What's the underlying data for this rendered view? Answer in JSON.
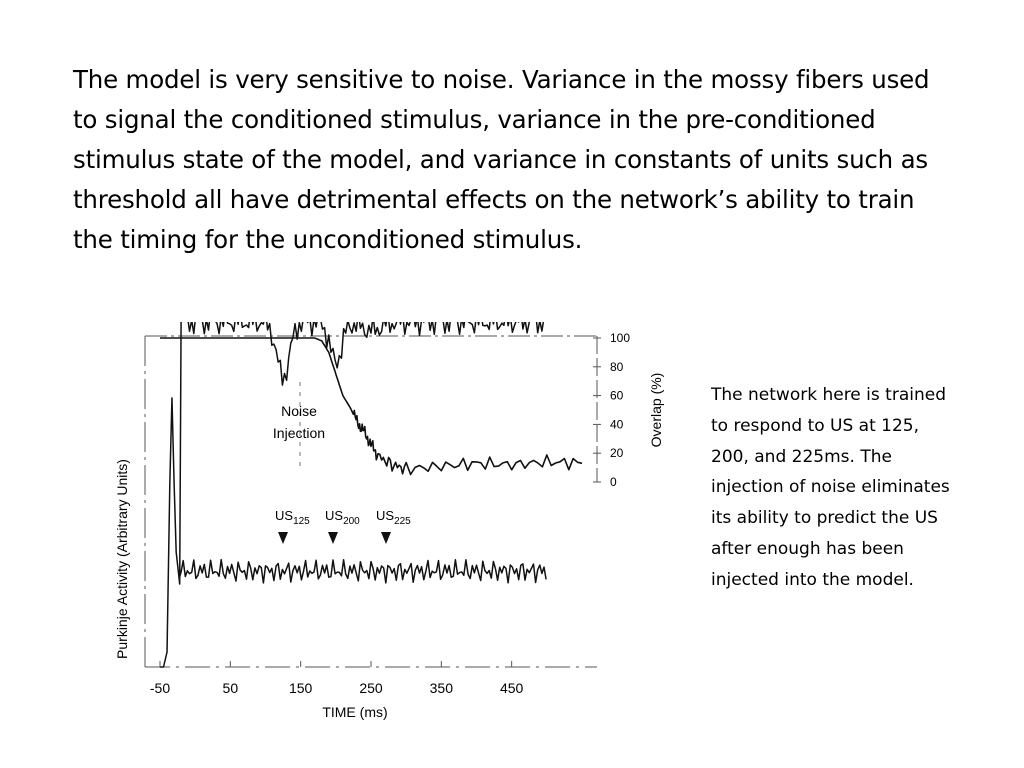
{
  "slide": {
    "main_paragraph": "The model is very sensitive to noise.  Variance in the mossy fibers used to signal the conditioned stimulus, variance in the pre-conditioned stimulus state of the model, and variance in constants of units such as threshold all have detrimental effects on the network’s ability to train the timing for the unconditioned stimulus.",
    "side_paragraph": "The network here is trained to respond to US at 125, 200, and 225ms.  The injection of noise eliminates its ability to predict the US after enough has been injected into the model."
  },
  "chart_data": {
    "type": "line",
    "xlabel": "TIME (ms)",
    "ylabel_left": "Purkinje Activity (Arbitrary Units)",
    "ylabel_right": "Overlap (%)",
    "x_ticks": [
      "-50",
      "50",
      "150",
      "250",
      "350",
      "450"
    ],
    "x_tick_values": [
      -50,
      50,
      150,
      250,
      350,
      450
    ],
    "xlim": [
      -50,
      550
    ],
    "right_ticks": [
      "100",
      "80",
      "60",
      "40",
      "20",
      "0"
    ],
    "right_tick_values": [
      100,
      80,
      60,
      40,
      20,
      0
    ],
    "right_ylim": [
      0,
      100
    ],
    "annotations": {
      "noise_line1": "Noise",
      "noise_line2": "Injection",
      "us": [
        {
          "base": "US",
          "sub": "125"
        },
        {
          "base": "US",
          "sub": "200"
        },
        {
          "base": "US",
          "sub": "225"
        }
      ]
    },
    "series": [
      {
        "x": [
          -50,
          0,
          50,
          100,
          130,
          150,
          170,
          180,
          190,
          200,
          210,
          220,
          230,
          240,
          250,
          260,
          280,
          300,
          350,
          400,
          450,
          500,
          550
        ],
        "values": [
          100,
          100,
          100,
          100,
          100,
          100,
          100,
          98,
          90,
          75,
          60,
          52,
          42,
          35,
          26,
          18,
          12,
          9,
          11,
          13,
          12,
          14,
          13
        ]
      }
    ]
  }
}
